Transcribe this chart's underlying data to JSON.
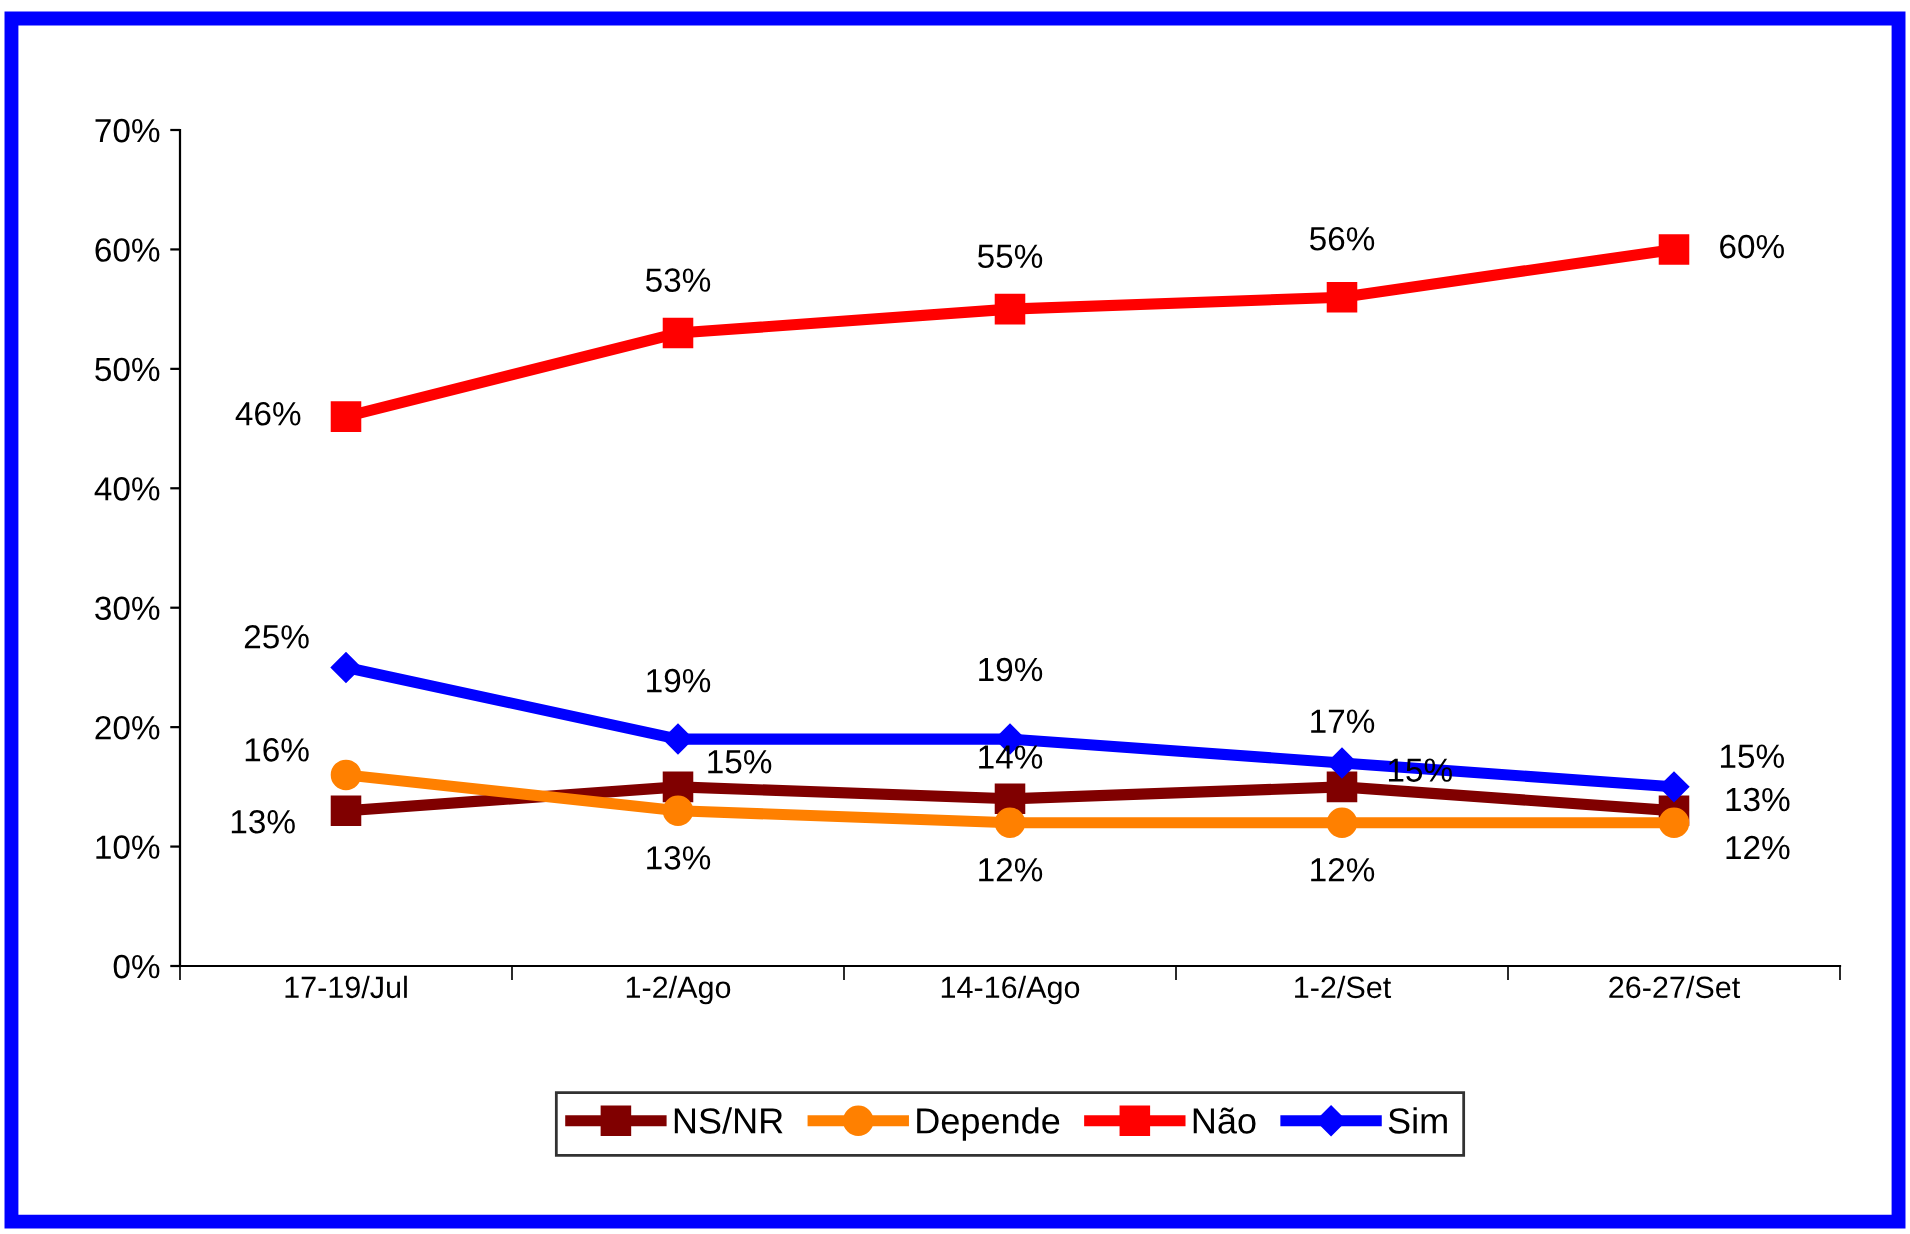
{
  "chart_data": {
    "type": "line",
    "categories": [
      "17-19/Jul",
      "1-2/Ago",
      "14-16/Ago",
      "1-2/Set",
      "26-27/Set"
    ],
    "series": [
      {
        "name": "NS/NR",
        "color": "#800000",
        "marker": "square",
        "values": [
          13,
          15,
          14,
          15,
          13
        ],
        "value_labels": [
          "13%",
          "15%",
          "14%",
          "15%",
          "13%"
        ]
      },
      {
        "name": "Depende",
        "color": "#ff8000",
        "marker": "circle",
        "values": [
          16,
          13,
          12,
          12,
          12
        ],
        "value_labels": [
          "16%",
          "13%",
          "12%",
          "12%",
          "12%"
        ]
      },
      {
        "name": "Não",
        "color": "#ff0000",
        "marker": "square",
        "values": [
          46,
          53,
          55,
          56,
          60
        ],
        "value_labels": [
          "46%",
          "53%",
          "55%",
          "56%",
          "60%"
        ]
      },
      {
        "name": "Sim",
        "color": "#0000ff",
        "marker": "diamond",
        "values": [
          25,
          19,
          19,
          17,
          15
        ],
        "value_labels": [
          "25%",
          "19%",
          "19%",
          "17%",
          "15%"
        ]
      }
    ],
    "ylim": [
      0,
      70
    ],
    "yticks": [
      {
        "value": 0,
        "label": "0%"
      },
      {
        "value": 10,
        "label": "10%"
      },
      {
        "value": 20,
        "label": "20%"
      },
      {
        "value": 30,
        "label": "30%"
      },
      {
        "value": 40,
        "label": "40%"
      },
      {
        "value": 50,
        "label": "50%"
      },
      {
        "value": 60,
        "label": "60%"
      },
      {
        "value": 70,
        "label": "70%"
      }
    ],
    "legend": "bottom",
    "grid": false,
    "line_style": "solid"
  }
}
